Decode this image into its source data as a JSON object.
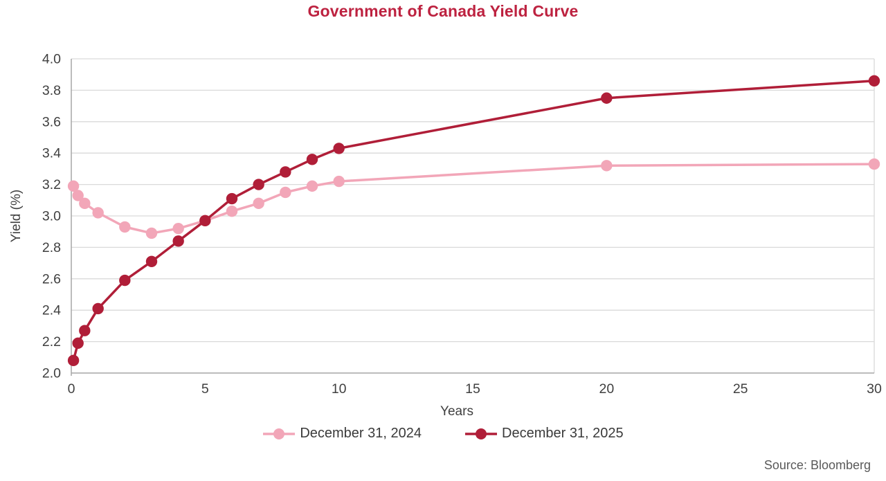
{
  "title": "Government of Canada Yield Curve",
  "source_note": "Source: Bloomberg",
  "chart_data": {
    "type": "line",
    "title": "Government of Canada Yield Curve",
    "xlabel": "Years",
    "ylabel": "Yield (%)",
    "xlim": [
      0,
      30
    ],
    "ylim": [
      2.0,
      4.0
    ],
    "x_ticks": [
      0,
      5,
      10,
      15,
      20,
      25,
      30
    ],
    "y_ticks": [
      2.0,
      2.2,
      2.4,
      2.6,
      2.8,
      3.0,
      3.2,
      3.4,
      3.6,
      3.8,
      4.0
    ],
    "y_tick_labels": [
      "2.0",
      "2.2",
      "2.4",
      "2.6",
      "2.8",
      "3.0",
      "3.2",
      "3.4",
      "3.6",
      "3.8",
      "4.0"
    ],
    "grid": "horizontal",
    "legend_position": "bottom",
    "x": [
      0.08,
      0.25,
      0.5,
      1,
      2,
      3,
      4,
      5,
      6,
      7,
      8,
      9,
      10,
      20,
      30
    ],
    "series": [
      {
        "name": "December 31, 2024",
        "color": "#f2a6b8",
        "values": [
          3.19,
          3.13,
          3.08,
          3.02,
          2.93,
          2.89,
          2.92,
          2.97,
          3.03,
          3.08,
          3.15,
          3.19,
          3.22,
          3.32,
          3.33
        ]
      },
      {
        "name": "December 31, 2025",
        "color": "#b01e38",
        "values": [
          2.08,
          2.19,
          2.27,
          2.41,
          2.59,
          2.71,
          2.84,
          2.97,
          3.11,
          3.2,
          3.28,
          3.36,
          3.43,
          3.75,
          3.86
        ]
      }
    ],
    "colors": {
      "title": "#bd2240",
      "gridline": "#d9d9d9",
      "axis_line": "#a6a6a6",
      "tick_text": "#3f3f3f",
      "source_text": "#595959"
    }
  }
}
